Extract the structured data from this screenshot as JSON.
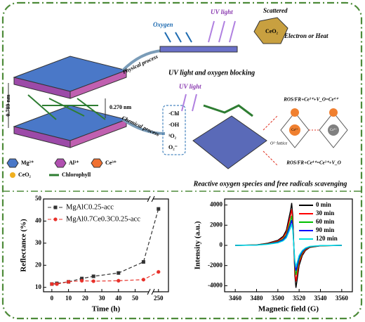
{
  "diagram": {
    "oxygen": "Oxygen",
    "uv_light_top": "UV light",
    "scattered": "Scattered",
    "ceo2_crystal": "CeO₂",
    "electron_heat": "Electron or Heat",
    "physical_process": "Physical process",
    "physical_result": "UV light and oxygen blocking",
    "chemical_process": "Chemical process",
    "uv_light_mid": "UV light",
    "spacing_1": "0.789 nm",
    "spacing_2": "0.270 nm",
    "legend": [
      "Mg²⁺",
      "Al³⁺",
      "Ce³⁺",
      "CeO₂",
      "Chlorophyll"
    ],
    "species": [
      "·Chl",
      "·OH",
      "¹O₂",
      "O₂⁻"
    ],
    "reaction_top": "ROS/FR+Ce³⁺+V_O=Ce⁴⁺",
    "reaction_bottom": "ROS/FR+Ce⁴⁺=Ce³⁺+V_O",
    "lattice_oxygen": "O²⁻lattice",
    "ce3": "Ce³⁺",
    "ce4": "Ce⁴⁺",
    "chemical_result": "Reactive oxygen species and free radicals scavenging"
  },
  "chart_data": [
    {
      "type": "line",
      "xlabel": "Time (h)",
      "ylabel": "Reflectance (%)",
      "x": [
        0,
        3,
        10,
        18,
        25,
        40,
        55,
        250
      ],
      "xlim": [
        -5,
        260
      ],
      "xbreak": [
        58,
        245
      ],
      "xticks": [
        0,
        10,
        20,
        30,
        40,
        50,
        250
      ],
      "ylim": [
        8,
        50
      ],
      "yticks": [
        10,
        20,
        30,
        40,
        50
      ],
      "legend": "upper left",
      "series": [
        {
          "name": "MgAlC0.25-acc",
          "color": "#333333",
          "marker": "square",
          "line_style": "dashed",
          "values": [
            11.5,
            11.8,
            12.5,
            14,
            15,
            16.5,
            21.5,
            45.5
          ]
        },
        {
          "name": "MgAl0.7Ce0.3C0.25-acc",
          "color": "#e8312a",
          "marker": "circle",
          "line_style": "dashed",
          "values": [
            11.5,
            11.5,
            12.5,
            13,
            12.8,
            13,
            13.5,
            17
          ]
        }
      ]
    },
    {
      "type": "line",
      "xlabel": "Magnetic field (G)",
      "ylabel": "Intensity (a.u.)",
      "x": [
        3460,
        3480,
        3490,
        3500,
        3505,
        3508,
        3510,
        3512,
        3513,
        3514,
        3515,
        3516,
        3517,
        3518,
        3520,
        3523,
        3526,
        3530,
        3540,
        3560
      ],
      "xlim": [
        3450,
        3570
      ],
      "xticks": [
        3460,
        3480,
        3500,
        3520,
        3540,
        3560
      ],
      "ylim": [
        -4600,
        4600
      ],
      "yticks": [
        -4000,
        -2000,
        0,
        2000,
        4000
      ],
      "legend": "upper right",
      "series": [
        {
          "name": "0 min",
          "color": "#000000",
          "values": [
            0,
            50,
            200,
            500,
            900,
            1500,
            2500,
            3500,
            4200,
            3000,
            0,
            -3000,
            -4200,
            -3500,
            -2000,
            -1000,
            -500,
            -200,
            -50,
            0
          ]
        },
        {
          "name": "30 min",
          "color": "#ff0000",
          "values": [
            0,
            40,
            170,
            430,
            770,
            1280,
            2130,
            2980,
            3570,
            2550,
            0,
            -2550,
            -3570,
            -2980,
            -1700,
            -850,
            -430,
            -170,
            -40,
            0
          ]
        },
        {
          "name": "60 min",
          "color": "#00c000",
          "values": [
            0,
            35,
            140,
            350,
            630,
            1050,
            1750,
            2450,
            2940,
            2100,
            0,
            -2100,
            -2940,
            -2450,
            -1400,
            -700,
            -350,
            -140,
            -35,
            0
          ]
        },
        {
          "name": "90 min",
          "color": "#0000ff",
          "values": [
            0,
            30,
            120,
            300,
            540,
            900,
            1500,
            2100,
            2520,
            1800,
            0,
            -1800,
            -2520,
            -2100,
            -1200,
            -600,
            -300,
            -120,
            -30,
            0
          ]
        },
        {
          "name": "120 min",
          "color": "#00e0e0",
          "values": [
            0,
            25,
            100,
            250,
            450,
            750,
            1250,
            1750,
            2100,
            1500,
            0,
            -1500,
            -2100,
            -1750,
            -1000,
            -500,
            -250,
            -100,
            -25,
            0
          ]
        }
      ]
    }
  ]
}
